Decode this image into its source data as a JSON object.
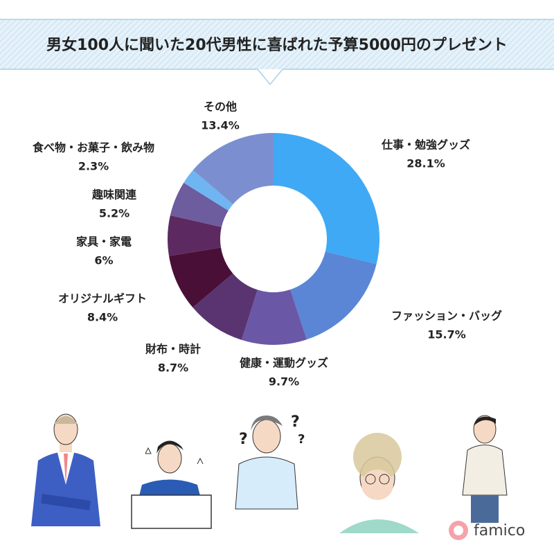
{
  "chart_data": {
    "type": "donut",
    "title": "男女100人に聞いた20代男性に喜ばれた予算5000円のプレゼント",
    "categories": [
      "仕事・勉強グッズ",
      "ファッション・バッグ",
      "健康・運動グッズ",
      "財布・時計",
      "オリジナルギフト",
      "家具・家電",
      "趣味関連",
      "食べ物・お菓子・飲み物",
      "その他"
    ],
    "values": [
      28.1,
      15.7,
      9.7,
      8.7,
      8.4,
      6,
      5.2,
      2.3,
      13.4
    ],
    "value_labels": [
      "28.1%",
      "15.7%",
      "9.7%",
      "8.7%",
      "8.4%",
      "6%",
      "5.2%",
      "2.3%",
      "13.4%"
    ],
    "colors": [
      "#3fa9f5",
      "#5b86d6",
      "#6a58a6",
      "#5a3470",
      "#4a0f36",
      "#5c2a60",
      "#6d5c9e",
      "#6fb5f2",
      "#7b8fd0"
    ]
  },
  "logo": "famico"
}
